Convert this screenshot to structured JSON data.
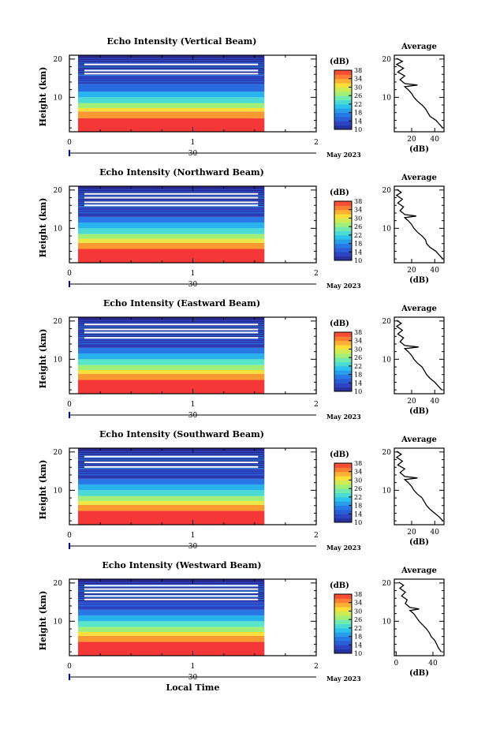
{
  "chart_data": [
    {
      "type": "heatmap",
      "title": "Echo Intensity (Vertical Beam)",
      "ylabel": "Height (km)",
      "xlabel": "",
      "x_ticks": [
        "0",
        "1",
        "2"
      ],
      "y_ticks": [
        "10",
        "20"
      ],
      "date_label": "30",
      "month_label": "May 2023",
      "ylim": [
        1,
        21
      ],
      "xlim": [
        0,
        2
      ],
      "data_time_range": [
        0.07,
        1.58
      ],
      "colorbar": {
        "unit": "(dB)",
        "ticks": [
          "38",
          "34",
          "30",
          "26",
          "22",
          "18",
          "14",
          "10"
        ],
        "range": [
          10,
          38
        ]
      },
      "layers": [
        {
          "top": 21,
          "dB": 10
        },
        {
          "top": 16,
          "dB": 12
        },
        {
          "top": 13.5,
          "dB": 16
        },
        {
          "top": 11.5,
          "dB": 20
        },
        {
          "top": 10,
          "dB": 23
        },
        {
          "top": 8.5,
          "dB": 27
        },
        {
          "top": 7.2,
          "dB": 31
        },
        {
          "top": 6.3,
          "dB": 34
        },
        {
          "top": 4.5,
          "dB": 38
        }
      ],
      "gap_heights": [
        18.8,
        17.2,
        16.4
      ],
      "profile": {
        "title": "Average",
        "xlabel": "(dB)",
        "x_ticks": [
          "20",
          "40"
        ],
        "xlim": [
          5,
          48
        ],
        "y_ticks": [
          "10",
          "20"
        ],
        "points": [
          [
            47,
            2
          ],
          [
            44,
            3
          ],
          [
            41,
            4
          ],
          [
            36,
            5
          ],
          [
            34,
            6
          ],
          [
            32,
            7
          ],
          [
            29,
            8
          ],
          [
            25,
            9
          ],
          [
            22,
            10
          ],
          [
            20,
            11
          ],
          [
            17,
            12
          ],
          [
            14,
            12.8
          ],
          [
            25,
            13.2
          ],
          [
            14,
            13.6
          ],
          [
            10,
            14.6
          ],
          [
            14,
            15.6
          ],
          [
            8,
            16.6
          ],
          [
            13,
            17.6
          ],
          [
            7,
            18.6
          ],
          [
            12,
            19.4
          ],
          [
            7,
            20.2
          ]
        ]
      }
    },
    {
      "type": "heatmap",
      "title": "Echo Intensity (Northward Beam)",
      "ylabel": "Height (km)",
      "xlabel": "",
      "x_ticks": [
        "0",
        "1",
        "2"
      ],
      "y_ticks": [
        "10",
        "20"
      ],
      "date_label": "30",
      "month_label": "May 2023",
      "ylim": [
        1,
        21
      ],
      "xlim": [
        0,
        2
      ],
      "data_time_range": [
        0.07,
        1.58
      ],
      "colorbar": {
        "unit": "(dB)",
        "ticks": [
          "38",
          "34",
          "30",
          "26",
          "22",
          "18",
          "14",
          "10"
        ],
        "range": [
          10,
          38
        ]
      },
      "layers": [
        {
          "top": 21,
          "dB": 10
        },
        {
          "top": 15.5,
          "dB": 12
        },
        {
          "top": 13,
          "dB": 17
        },
        {
          "top": 11.5,
          "dB": 20
        },
        {
          "top": 10,
          "dB": 23
        },
        {
          "top": 8.5,
          "dB": 27
        },
        {
          "top": 7.3,
          "dB": 30
        },
        {
          "top": 6.2,
          "dB": 34
        },
        {
          "top": 4.6,
          "dB": 38
        }
      ],
      "gap_heights": [
        19.2,
        18.2,
        17.0,
        16.2
      ],
      "profile": {
        "title": "Average",
        "xlabel": "(dB)",
        "x_ticks": [
          "20",
          "40"
        ],
        "xlim": [
          5,
          48
        ],
        "y_ticks": [
          "10",
          "20"
        ],
        "points": [
          [
            47,
            2
          ],
          [
            44,
            3
          ],
          [
            41,
            4
          ],
          [
            36,
            5
          ],
          [
            33,
            6
          ],
          [
            32,
            7
          ],
          [
            29,
            8
          ],
          [
            25,
            9
          ],
          [
            22,
            10
          ],
          [
            20,
            11
          ],
          [
            17,
            12
          ],
          [
            14,
            12.8
          ],
          [
            24,
            13.2
          ],
          [
            14,
            13.6
          ],
          [
            10,
            14.6
          ],
          [
            13,
            15.6
          ],
          [
            8,
            16.6
          ],
          [
            12,
            17.6
          ],
          [
            7,
            18.6
          ],
          [
            11,
            19.4
          ],
          [
            7,
            20.2
          ]
        ]
      }
    },
    {
      "type": "heatmap",
      "title": "Echo Intensity (Eastward Beam)",
      "ylabel": "Height (km)",
      "xlabel": "",
      "x_ticks": [
        "0",
        "1",
        "2"
      ],
      "y_ticks": [
        "10",
        "20"
      ],
      "date_label": "30",
      "month_label": "May 2023",
      "ylim": [
        1,
        21
      ],
      "xlim": [
        0,
        2
      ],
      "data_time_range": [
        0.07,
        1.58
      ],
      "colorbar": {
        "unit": "(dB)",
        "ticks": [
          "38",
          "34",
          "30",
          "26",
          "22",
          "18",
          "14",
          "10"
        ],
        "range": [
          10,
          38
        ]
      },
      "layers": [
        {
          "top": 21,
          "dB": 10
        },
        {
          "top": 15.5,
          "dB": 12
        },
        {
          "top": 13,
          "dB": 17
        },
        {
          "top": 11.5,
          "dB": 20
        },
        {
          "top": 10,
          "dB": 24
        },
        {
          "top": 8.5,
          "dB": 27
        },
        {
          "top": 7.2,
          "dB": 31
        },
        {
          "top": 6.2,
          "dB": 34
        },
        {
          "top": 4.6,
          "dB": 38
        }
      ],
      "gap_heights": [
        19.3,
        18.0,
        17.2,
        15.8
      ],
      "profile": {
        "title": "Average",
        "xlabel": "(dB)",
        "x_ticks": [
          "20",
          "40"
        ],
        "xlim": [
          5,
          48
        ],
        "y_ticks": [
          "10",
          "20"
        ],
        "points": [
          [
            46,
            2
          ],
          [
            43,
            3
          ],
          [
            40,
            4
          ],
          [
            36,
            5
          ],
          [
            33,
            6
          ],
          [
            31,
            7
          ],
          [
            29,
            8
          ],
          [
            25,
            9
          ],
          [
            22,
            10
          ],
          [
            20,
            11
          ],
          [
            17,
            12
          ],
          [
            14,
            12.8
          ],
          [
            26,
            13.2
          ],
          [
            14,
            13.6
          ],
          [
            10,
            14.6
          ],
          [
            13,
            15.6
          ],
          [
            8,
            16.6
          ],
          [
            12,
            17.6
          ],
          [
            7,
            18.6
          ],
          [
            11,
            19.4
          ],
          [
            7,
            20.2
          ]
        ]
      }
    },
    {
      "type": "heatmap",
      "title": "Echo Intensity (Southward Beam)",
      "ylabel": "Height (km)",
      "xlabel": "",
      "x_ticks": [
        "0",
        "1",
        "2"
      ],
      "y_ticks": [
        "10",
        "20"
      ],
      "date_label": "30",
      "month_label": "May 2023",
      "ylim": [
        1,
        21
      ],
      "xlim": [
        0,
        2
      ],
      "data_time_range": [
        0.07,
        1.58
      ],
      "colorbar": {
        "unit": "(dB)",
        "ticks": [
          "38",
          "34",
          "30",
          "26",
          "22",
          "18",
          "14",
          "10"
        ],
        "range": [
          10,
          38
        ]
      },
      "layers": [
        {
          "top": 21,
          "dB": 10
        },
        {
          "top": 15.5,
          "dB": 12
        },
        {
          "top": 13,
          "dB": 17
        },
        {
          "top": 11.5,
          "dB": 20
        },
        {
          "top": 10,
          "dB": 23
        },
        {
          "top": 8.5,
          "dB": 27
        },
        {
          "top": 7.2,
          "dB": 30
        },
        {
          "top": 6.2,
          "dB": 34
        },
        {
          "top": 4.6,
          "dB": 38
        }
      ],
      "gap_heights": [
        19.0,
        17.5,
        16.3
      ],
      "profile": {
        "title": "Average",
        "xlabel": "(dB)",
        "x_ticks": [
          "20",
          "40"
        ],
        "xlim": [
          5,
          48
        ],
        "y_ticks": [
          "10",
          "20"
        ],
        "points": [
          [
            47,
            2
          ],
          [
            44,
            3
          ],
          [
            40,
            4
          ],
          [
            36,
            5
          ],
          [
            33,
            6
          ],
          [
            31,
            7
          ],
          [
            29,
            8
          ],
          [
            25,
            9
          ],
          [
            22,
            10
          ],
          [
            20,
            11
          ],
          [
            17,
            12
          ],
          [
            14,
            12.8
          ],
          [
            25,
            13.2
          ],
          [
            14,
            13.6
          ],
          [
            10,
            14.6
          ],
          [
            14,
            15.6
          ],
          [
            8,
            16.6
          ],
          [
            12,
            17.6
          ],
          [
            7,
            18.6
          ],
          [
            11,
            19.4
          ],
          [
            7,
            20.2
          ]
        ]
      }
    },
    {
      "type": "heatmap",
      "title": "Echo Intensity (Westward Beam)",
      "ylabel": "Height (km)",
      "xlabel": "Local Time",
      "x_ticks": [
        "0",
        "1",
        "2"
      ],
      "y_ticks": [
        "10",
        "20"
      ],
      "date_label": "30",
      "month_label": "May 2023",
      "ylim": [
        1,
        21
      ],
      "xlim": [
        0,
        2
      ],
      "data_time_range": [
        0.07,
        1.58
      ],
      "colorbar": {
        "unit": "(dB)",
        "ticks": [
          "38",
          "34",
          "30",
          "26",
          "22",
          "18",
          "14",
          "10"
        ],
        "range": [
          10,
          38
        ]
      },
      "layers": [
        {
          "top": 21,
          "dB": 10
        },
        {
          "top": 15,
          "dB": 13
        },
        {
          "top": 13,
          "dB": 17
        },
        {
          "top": 11.5,
          "dB": 20
        },
        {
          "top": 10,
          "dB": 24
        },
        {
          "top": 8.5,
          "dB": 27
        },
        {
          "top": 7.2,
          "dB": 31
        },
        {
          "top": 6.2,
          "dB": 34
        },
        {
          "top": 4.6,
          "dB": 38
        }
      ],
      "gap_heights": [
        19.5,
        18.6,
        17.7,
        16.8,
        15.9
      ],
      "profile": {
        "title": "Average",
        "xlabel": "(dB)",
        "x_ticks": [
          "0",
          "40"
        ],
        "xlim": [
          -2,
          52
        ],
        "y_ticks": [
          "10",
          "20"
        ],
        "points": [
          [
            49,
            2
          ],
          [
            46,
            3
          ],
          [
            44,
            4
          ],
          [
            42,
            5
          ],
          [
            38,
            6
          ],
          [
            36,
            7
          ],
          [
            33,
            8
          ],
          [
            29,
            9
          ],
          [
            25,
            10
          ],
          [
            22,
            11
          ],
          [
            19,
            12
          ],
          [
            15,
            12.8
          ],
          [
            25,
            13.2
          ],
          [
            15,
            13.6
          ],
          [
            10,
            14.6
          ],
          [
            12,
            15.6
          ],
          [
            6,
            16.6
          ],
          [
            10,
            17.6
          ],
          [
            4,
            18.6
          ],
          [
            8,
            19.4
          ],
          [
            3,
            20.2
          ]
        ]
      }
    }
  ]
}
